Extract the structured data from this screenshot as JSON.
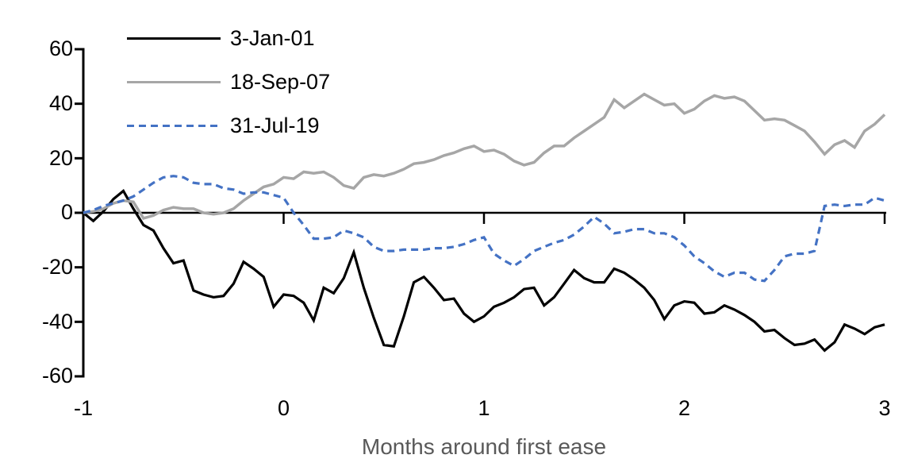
{
  "chart_data": {
    "type": "line",
    "title": "",
    "xlabel": "Months around first ease",
    "ylabel": "",
    "grid": false,
    "legend_position": "top-left",
    "x_axis": {
      "ticks": [
        "-1",
        "0",
        "1",
        "2",
        "3"
      ],
      "tick_values": [
        -1,
        0,
        1,
        2,
        3
      ],
      "range": [
        -1,
        3
      ]
    },
    "y_axis": {
      "ticks": [
        "60",
        "40",
        "20",
        "0",
        "-20",
        "-40",
        "-60"
      ],
      "tick_values": [
        60,
        40,
        20,
        0,
        -20,
        -40,
        -60
      ],
      "range": [
        -60,
        60
      ]
    },
    "x": [
      -1,
      -0.95,
      -0.9,
      -0.85,
      -0.8,
      -0.75,
      -0.7,
      -0.65,
      -0.6,
      -0.55,
      -0.5,
      -0.45,
      -0.4,
      -0.35,
      -0.3,
      -0.25,
      -0.2,
      -0.15,
      -0.1,
      -0.05,
      0,
      0.05,
      0.1,
      0.15,
      0.2,
      0.25,
      0.3,
      0.35,
      0.4,
      0.45,
      0.5,
      0.55,
      0.6,
      0.65,
      0.7,
      0.75,
      0.8,
      0.85,
      0.9,
      0.95,
      1,
      1.05,
      1.1,
      1.15,
      1.2,
      1.25,
      1.3,
      1.35,
      1.4,
      1.45,
      1.5,
      1.55,
      1.6,
      1.65,
      1.7,
      1.75,
      1.8,
      1.85,
      1.9,
      1.95,
      2,
      2.05,
      2.1,
      2.15,
      2.2,
      2.25,
      2.3,
      2.35,
      2.4,
      2.45,
      2.5,
      2.55,
      2.6,
      2.65,
      2.7,
      2.75,
      2.8,
      2.85,
      2.9,
      2.95,
      3
    ],
    "series": [
      {
        "name": "3-Jan-01",
        "color": "#000000",
        "style": "solid",
        "width": 3.2,
        "values": [
          0,
          -3,
          0.5,
          5,
          8,
          1.5,
          -4.5,
          -6.5,
          -13,
          -18.5,
          -17.5,
          -28.5,
          -30,
          -31,
          -30.5,
          -26,
          -18,
          -20.5,
          -23.5,
          -34.5,
          -30,
          -30.5,
          -33,
          -39.5,
          -27.5,
          -29.5,
          -24,
          -14.5,
          -27.5,
          -38.5,
          -48.5,
          -49,
          -38,
          -25.5,
          -23.5,
          -27.5,
          -32,
          -31.5,
          -37,
          -40,
          -38,
          -34.5,
          -33,
          -31,
          -28,
          -27.5,
          -34,
          -31,
          -26,
          -21,
          -24,
          -25.5,
          -25.5,
          -20.5,
          -22,
          -24.5,
          -27.5,
          -32,
          -39,
          -34,
          -32.5,
          -33,
          -37,
          -36.5,
          -34,
          -35.5,
          -37.5,
          -40,
          -43.5,
          -43,
          -46,
          -48.5,
          -48,
          -46.5,
          -50.5,
          -47.5,
          -41,
          -42.5,
          -44.5,
          -42,
          -41
        ]
      },
      {
        "name": "18-Sep-07",
        "color": "#A6A6A6",
        "style": "solid",
        "width": 3.5,
        "values": [
          0,
          0.5,
          1.5,
          3.5,
          4.5,
          4,
          -2,
          -1,
          1,
          2,
          1.5,
          1.5,
          0,
          -0.5,
          0,
          1.5,
          4.5,
          7,
          9.5,
          10.5,
          13,
          12.5,
          15,
          14.5,
          15,
          13,
          10,
          9,
          13,
          14,
          13.5,
          14.5,
          16,
          18,
          18.5,
          19.5,
          21,
          22,
          23.5,
          24.5,
          22.5,
          23,
          21.5,
          19,
          17.5,
          18.5,
          22,
          24.5,
          24.5,
          27.5,
          30,
          32.5,
          35,
          41.5,
          38.5,
          41,
          43.5,
          41.5,
          39.5,
          40,
          36.5,
          38,
          41,
          43,
          42,
          42.5,
          41,
          37.5,
          34,
          34.5,
          34,
          32,
          30,
          26,
          21.5,
          25,
          26.5,
          24,
          30,
          32.5,
          36
        ]
      },
      {
        "name": "31-Jul-19",
        "color": "#4472C4",
        "style": "dashed",
        "width": 3.2,
        "values": [
          0,
          1,
          2.5,
          3.5,
          4.5,
          6,
          8.5,
          11,
          13,
          13.5,
          13,
          11,
          10.5,
          10.5,
          9,
          8.5,
          7,
          7.5,
          7.5,
          6.5,
          5.5,
          0,
          -4.5,
          -9.5,
          -9.5,
          -9,
          -6.5,
          -7.5,
          -9,
          -12.5,
          -14,
          -14,
          -13.5,
          -13.5,
          -13.5,
          -13,
          -13,
          -12.5,
          -11.5,
          -10,
          -9,
          -15,
          -17.5,
          -19.5,
          -17,
          -14,
          -12.5,
          -11,
          -10,
          -8,
          -5,
          -1.5,
          -4,
          -7.5,
          -7,
          -6,
          -6,
          -7.5,
          -7.5,
          -9,
          -12,
          -16,
          -18.5,
          -21.5,
          -23.5,
          -22,
          -22,
          -24.5,
          -25,
          -21,
          -16,
          -15,
          -15,
          -14,
          2.5,
          3,
          2.5,
          3,
          3,
          5.5,
          4.5
        ]
      }
    ]
  }
}
